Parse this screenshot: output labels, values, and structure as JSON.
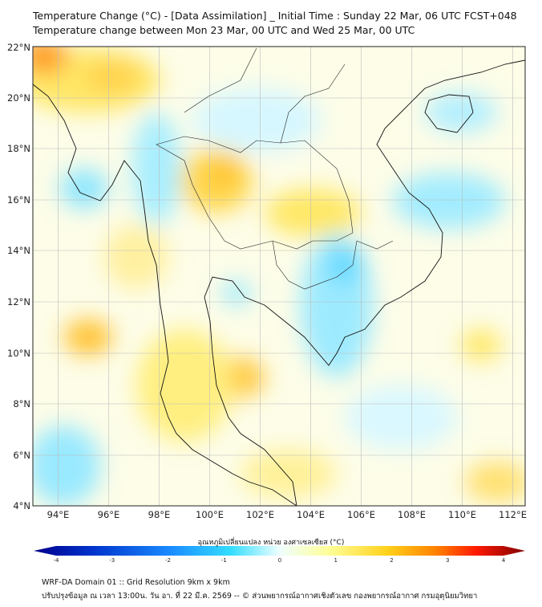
{
  "header": {
    "title": "Temperature Change (°C) - [Data Assimilation] _ Initial Time : Sunday 22 Mar, 06 UTC FCST+048",
    "subtitle": "Temperature change between Mon 23 Mar, 00 UTC and Wed 25 Mar, 00 UTC"
  },
  "map": {
    "lon_labels": [
      "94°E",
      "96°E",
      "98°E",
      "100°E",
      "102°E",
      "104°E",
      "106°E",
      "108°E",
      "110°E",
      "112°E"
    ],
    "lat_labels": [
      "22°N",
      "20°N",
      "18°N",
      "16°N",
      "14°N",
      "12°N",
      "10°N",
      "8°N",
      "6°N",
      "4°N"
    ],
    "lon_range": [
      93,
      112.5
    ],
    "lat_range": [
      4,
      22
    ]
  },
  "colorbar": {
    "title": "อุณหภูมิเปลี่ยนแปลง หน่วย องศาเซลเซียส (°C)",
    "ticks": [
      "-4",
      "-3",
      "-2",
      "-1",
      "0",
      "1",
      "2",
      "3",
      "4"
    ],
    "min": -4,
    "max": 4,
    "colors": [
      "#00008b",
      "#0033cc",
      "#1a8cff",
      "#33ddff",
      "#e6ffff",
      "#ffffc0",
      "#ffe033",
      "#ff9900",
      "#ff1a00",
      "#800000"
    ]
  },
  "footer": {
    "line1": "WRF-DA Domain 01 :: Grid Resolution 9km x 9km",
    "line2": "ปรับปรุงข้อมูล ณ เวลา 13:00น. วัน อา. ที่ 22 มี.ค. 2569 -- © ส่วนพยากรณ์อากาศเชิงตัวเลข กองพยากรณ์อากาศ กรมอุตุนิยมวิทยา"
  }
}
